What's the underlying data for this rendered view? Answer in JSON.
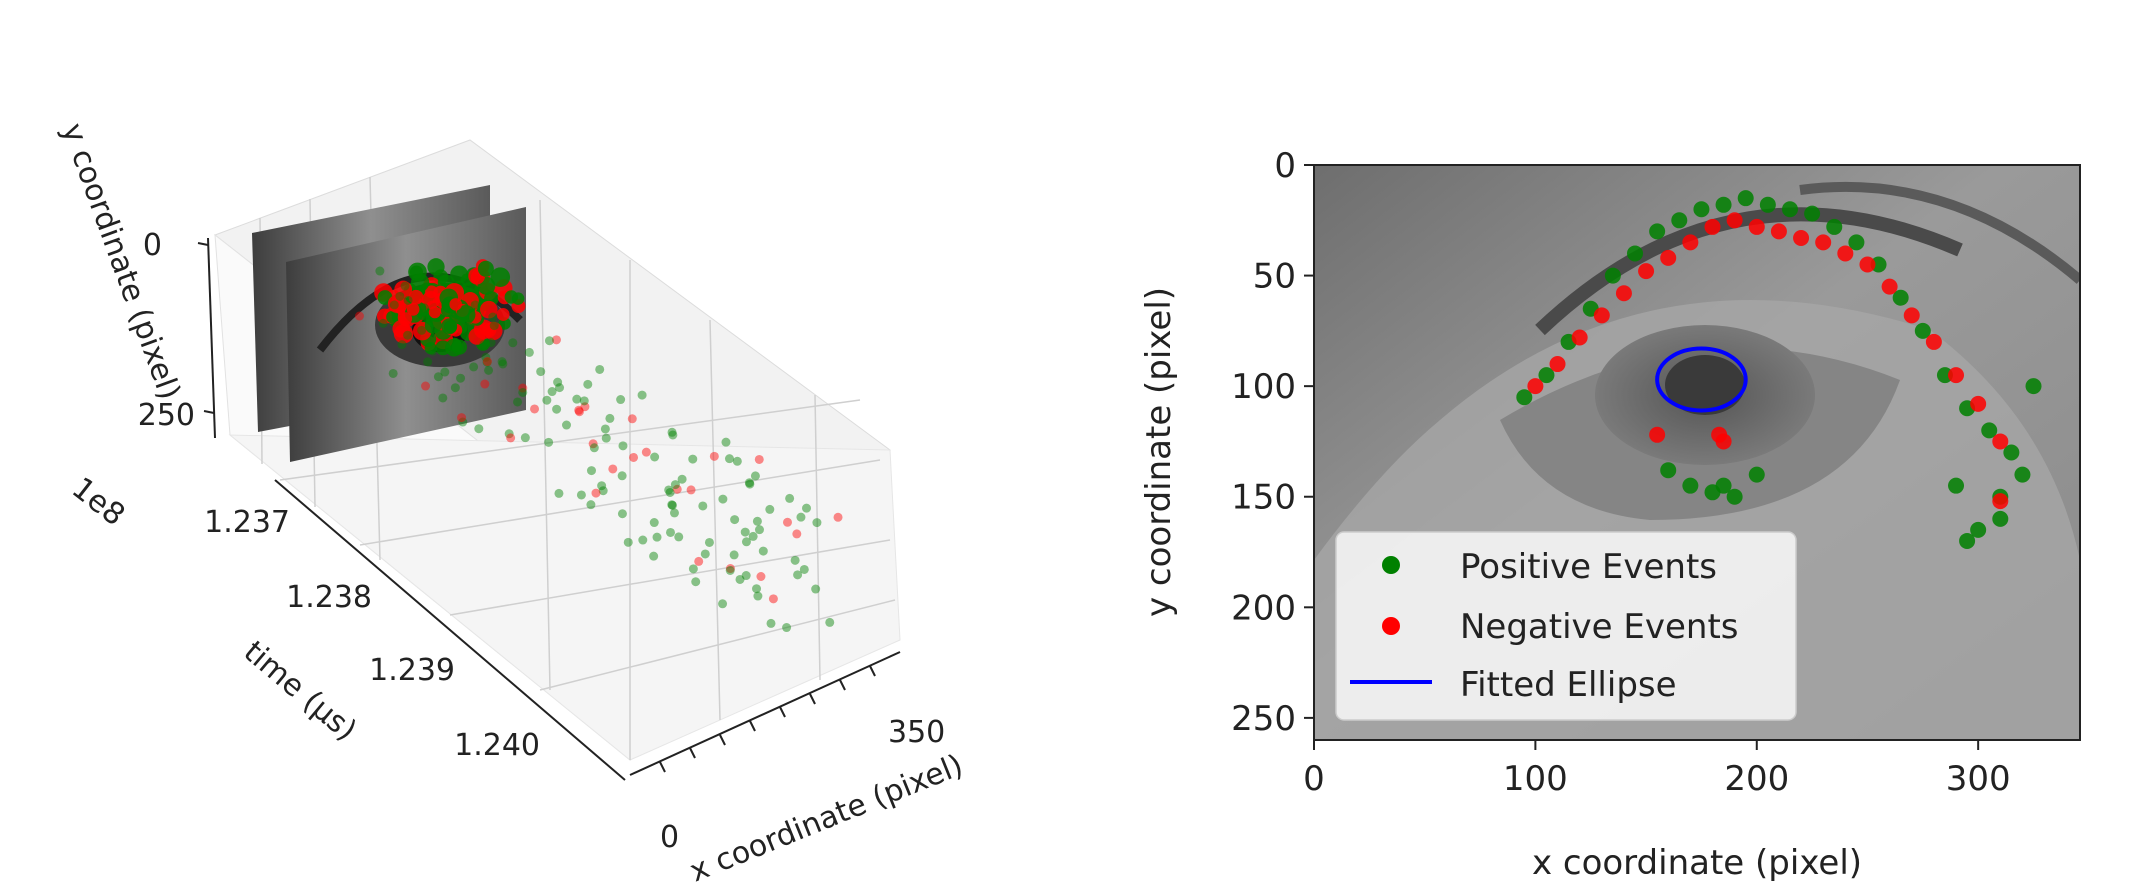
{
  "chart_data": [
    {
      "type": "scatter3d",
      "title": "",
      "xlabel": "x coordinate (pixel)",
      "ylabel": "y coordinate (pixel)",
      "zlabel": "time (µs)",
      "offset_label": "1e8",
      "x_ticks": [
        "0",
        "350"
      ],
      "y_ticks": [
        "0",
        "250"
      ],
      "time_ticks": [
        "1.237",
        "1.238",
        "1.239",
        "1.240"
      ],
      "xlim": [
        0,
        350
      ],
      "ylim": [
        0,
        250
      ],
      "tlim": [
        1.2365,
        1.2405
      ],
      "background": "grayscale eye image frames at start of time axis",
      "series": [
        {
          "name": "Positive Events",
          "color": "#008000"
        },
        {
          "name": "Negative Events",
          "color": "#ff0000"
        }
      ]
    },
    {
      "type": "scatter",
      "title": "",
      "xlabel": "x coordinate (pixel)",
      "ylabel": "y coordinate (pixel)",
      "x_ticks": [
        0,
        100,
        200,
        300
      ],
      "y_ticks": [
        0,
        50,
        100,
        150,
        200,
        250
      ],
      "xlim": [
        0,
        346
      ],
      "ylim": [
        260,
        0
      ],
      "background": "grayscale eye image",
      "legend": {
        "position": "lower-left",
        "entries": [
          "Positive Events",
          "Negative Events",
          "Fitted Ellipse"
        ]
      },
      "series": [
        {
          "name": "Positive Events",
          "color": "#008000",
          "marker": "o",
          "x": [
            95,
            105,
            115,
            125,
            135,
            145,
            155,
            165,
            175,
            185,
            195,
            205,
            215,
            225,
            235,
            245,
            255,
            265,
            275,
            285,
            295,
            305,
            315,
            320,
            325,
            300,
            290,
            310,
            160,
            170,
            185,
            190,
            180,
            200,
            295,
            310
          ],
          "y": [
            105,
            95,
            80,
            65,
            50,
            40,
            30,
            25,
            20,
            18,
            15,
            18,
            20,
            22,
            28,
            35,
            45,
            60,
            75,
            95,
            110,
            120,
            130,
            140,
            100,
            165,
            145,
            150,
            138,
            145,
            145,
            150,
            148,
            140,
            170,
            160
          ]
        },
        {
          "name": "Negative Events",
          "color": "#ff0000",
          "marker": "o",
          "x": [
            100,
            110,
            120,
            130,
            140,
            150,
            160,
            170,
            180,
            190,
            200,
            210,
            220,
            230,
            240,
            250,
            260,
            270,
            280,
            290,
            300,
            310,
            155,
            183,
            185,
            310
          ],
          "y": [
            100,
            90,
            78,
            68,
            58,
            48,
            42,
            35,
            28,
            25,
            28,
            30,
            33,
            35,
            40,
            45,
            55,
            68,
            80,
            95,
            108,
            125,
            122,
            122,
            125,
            152
          ]
        },
        {
          "name": "Fitted Ellipse",
          "color": "#0000ff",
          "type": "ellipse",
          "center": [
            175,
            97
          ],
          "width": 40,
          "height": 28
        }
      ]
    }
  ]
}
